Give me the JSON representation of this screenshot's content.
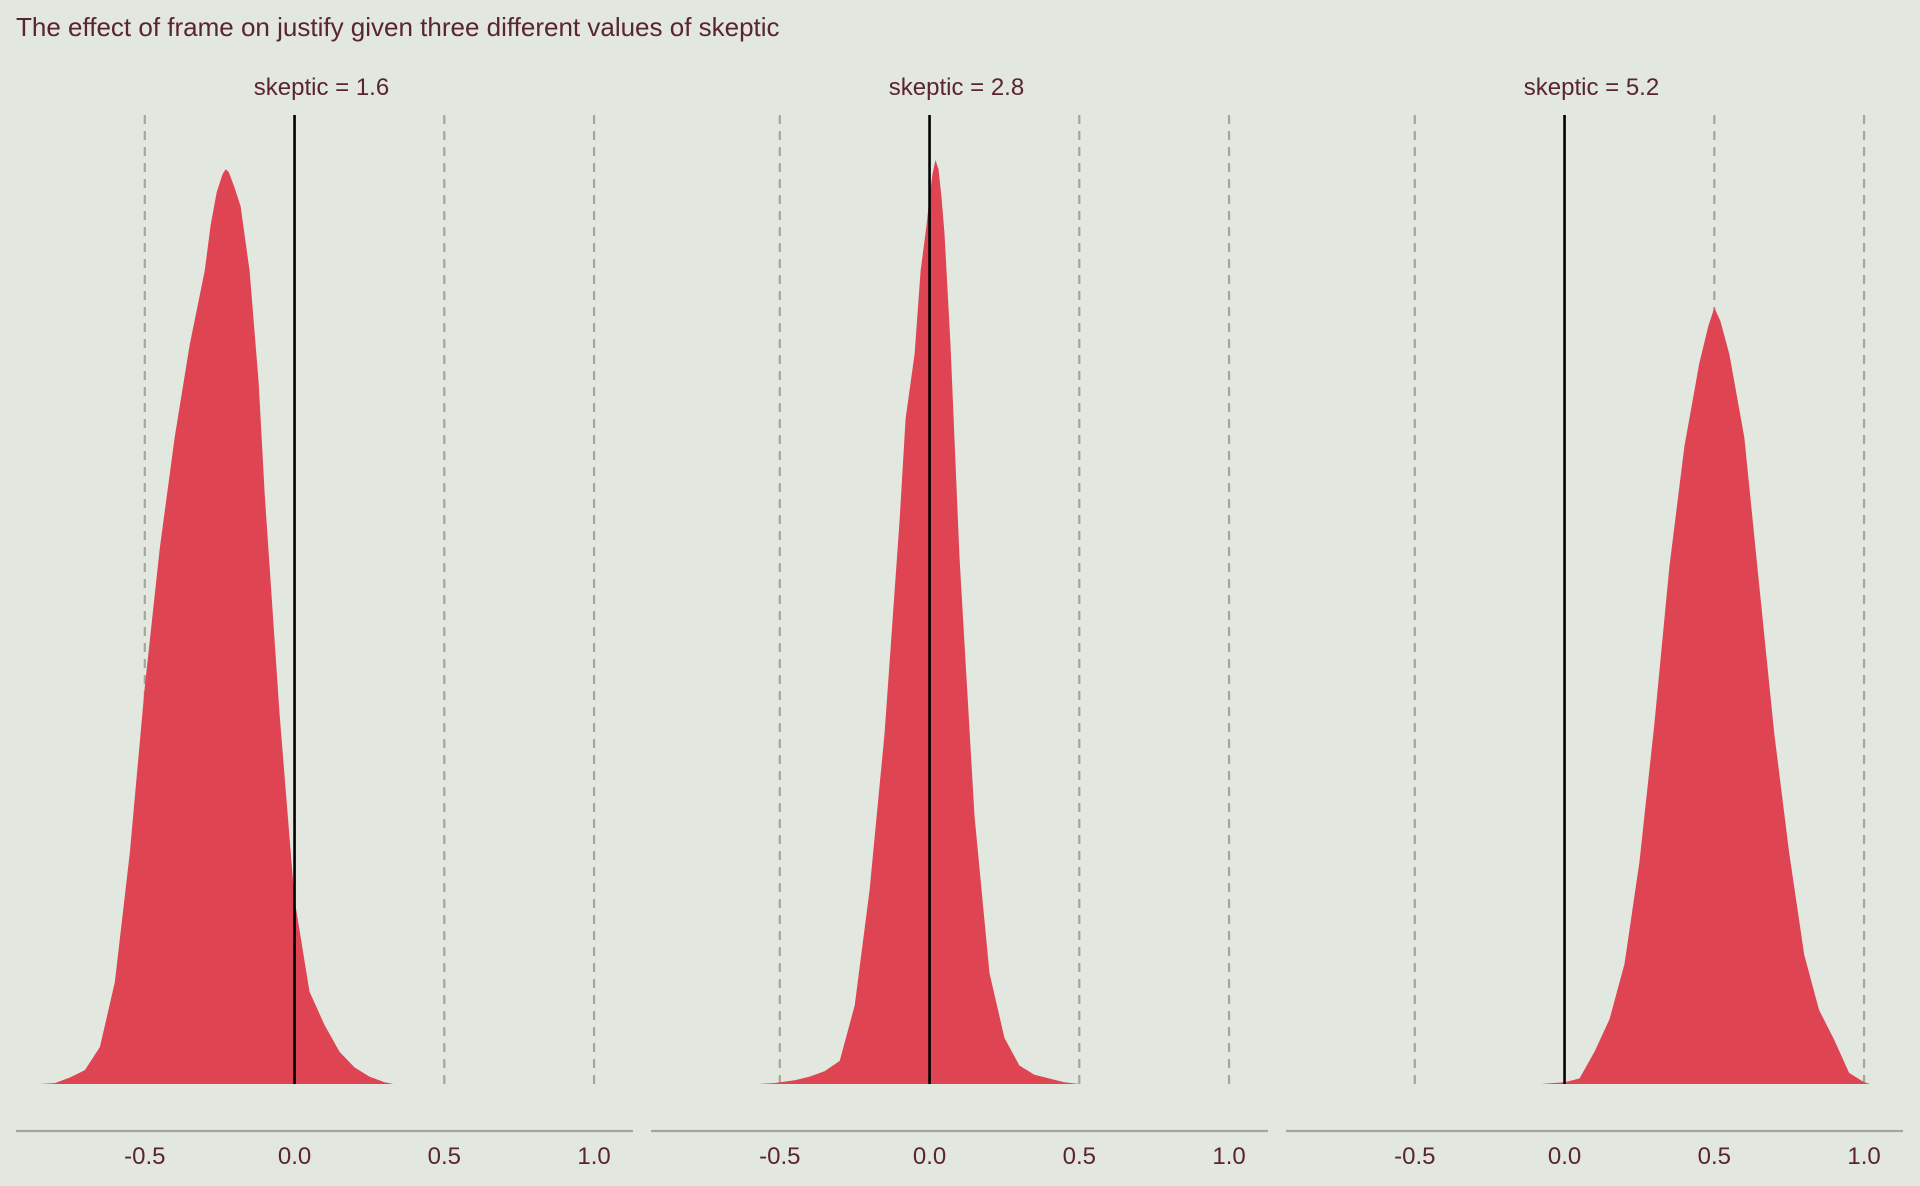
{
  "chart_data": {
    "type": "area",
    "title": "The effect of frame on justify given three different values of skeptic",
    "xlabel": "",
    "ylabel": "",
    "xlim": [
      -0.93,
      1.13
    ],
    "x_ticks": [
      "-0.5",
      "0.0",
      "0.5",
      "1.0"
    ],
    "x_tick_values": [
      -0.5,
      0.0,
      0.5,
      1.0
    ],
    "dashed_reference_lines": [
      -0.5,
      0.5,
      1.0
    ],
    "solid_reference_line": 0.0,
    "grid": false,
    "colors": {
      "background": "#e2e7e0",
      "fill": "#de4452",
      "text": "#5a2430",
      "dashed_line": "#a3a69a",
      "zero_line": "#000000",
      "axis_line": "#a3a69a"
    },
    "panels": [
      {
        "strip_label": "skeptic = 1.6",
        "density": {
          "x": [
            -0.85,
            -0.8,
            -0.75,
            -0.7,
            -0.65,
            -0.6,
            -0.55,
            -0.5,
            -0.45,
            -0.4,
            -0.35,
            -0.3,
            -0.28,
            -0.26,
            -0.24,
            -0.23,
            -0.22,
            -0.2,
            -0.18,
            -0.15,
            -0.12,
            -0.1,
            -0.05,
            0.0,
            0.05,
            0.1,
            0.15,
            0.2,
            0.25,
            0.3,
            0.33
          ],
          "y": [
            0.0,
            0.001,
            0.007,
            0.015,
            0.04,
            0.11,
            0.25,
            0.43,
            0.58,
            0.7,
            0.8,
            0.88,
            0.93,
            0.965,
            0.985,
            0.99,
            0.987,
            0.97,
            0.95,
            0.88,
            0.76,
            0.64,
            0.4,
            0.2,
            0.1,
            0.064,
            0.035,
            0.018,
            0.008,
            0.002,
            0.0
          ]
        }
      },
      {
        "strip_label": "skeptic = 2.8",
        "density": {
          "x": [
            -0.57,
            -0.52,
            -0.45,
            -0.4,
            -0.35,
            -0.3,
            -0.25,
            -0.2,
            -0.15,
            -0.1,
            -0.08,
            -0.05,
            -0.03,
            -0.01,
            0.0,
            0.01,
            0.02,
            0.03,
            0.04,
            0.05,
            0.07,
            0.1,
            0.15,
            0.2,
            0.25,
            0.3,
            0.35,
            0.4,
            0.45,
            0.5
          ],
          "y": [
            0.0,
            0.001,
            0.004,
            0.008,
            0.014,
            0.025,
            0.085,
            0.21,
            0.38,
            0.61,
            0.72,
            0.79,
            0.88,
            0.93,
            0.96,
            0.985,
            1.0,
            0.99,
            0.96,
            0.92,
            0.8,
            0.57,
            0.29,
            0.12,
            0.05,
            0.02,
            0.01,
            0.006,
            0.002,
            0.0
          ]
        }
      },
      {
        "strip_label": "skeptic = 5.2",
        "density": {
          "x": [
            -0.08,
            0.0,
            0.05,
            0.1,
            0.15,
            0.2,
            0.25,
            0.3,
            0.35,
            0.4,
            0.45,
            0.48,
            0.5,
            0.52,
            0.55,
            0.6,
            0.65,
            0.7,
            0.75,
            0.8,
            0.85,
            0.9,
            0.95,
            1.0,
            1.02
          ],
          "y": [
            0.0,
            0.002,
            0.006,
            0.035,
            0.07,
            0.13,
            0.24,
            0.39,
            0.56,
            0.69,
            0.78,
            0.82,
            0.84,
            0.826,
            0.79,
            0.7,
            0.54,
            0.38,
            0.25,
            0.14,
            0.08,
            0.048,
            0.012,
            0.002,
            0.0
          ]
        }
      }
    ]
  }
}
